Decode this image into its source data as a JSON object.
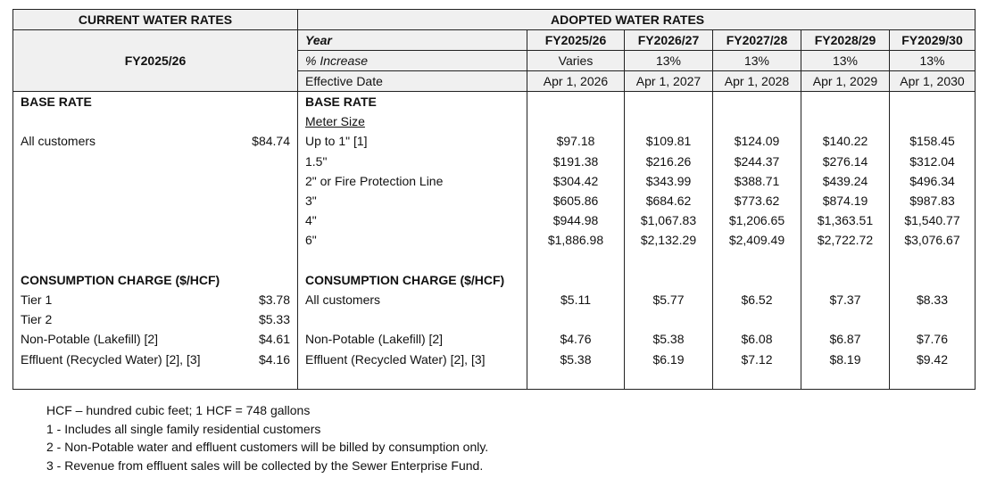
{
  "current": {
    "title": "CURRENT WATER RATES",
    "year": "FY2025/26"
  },
  "adopted": {
    "title": "ADOPTED WATER RATES",
    "row_labels": {
      "year": "Year",
      "increase": "% Increase",
      "effective": "Effective Date"
    },
    "years": [
      {
        "year": "FY2025/26",
        "increase": "Varies",
        "effective": "Apr 1, 2026"
      },
      {
        "year": "FY2026/27",
        "increase": "13%",
        "effective": "Apr 1, 2027"
      },
      {
        "year": "FY2027/28",
        "increase": "13%",
        "effective": "Apr 1, 2028"
      },
      {
        "year": "FY2028/29",
        "increase": "13%",
        "effective": "Apr 1, 2029"
      },
      {
        "year": "FY2029/30",
        "increase": "13%",
        "effective": "Apr 1, 2030"
      }
    ]
  },
  "body_rows": [
    {
      "cur_label": "BASE RATE",
      "cur_bold": true,
      "cur_value": "",
      "adp_label": "BASE RATE",
      "adp_style": "bold",
      "values": []
    },
    {
      "cur_label": "",
      "cur_value": "",
      "adp_label": "Meter Size",
      "adp_style": "underline",
      "values": []
    },
    {
      "cur_label": "All customers",
      "cur_value": "$84.74",
      "adp_label": "Up to 1\" [1]",
      "values": [
        "$97.18",
        "$109.81",
        "$124.09",
        "$140.22",
        "$158.45"
      ]
    },
    {
      "cur_label": "",
      "cur_value": "",
      "adp_label": "1.5\"",
      "values": [
        "$191.38",
        "$216.26",
        "$244.37",
        "$276.14",
        "$312.04"
      ]
    },
    {
      "cur_label": "",
      "cur_value": "",
      "adp_label": "2\" or Fire Protection Line",
      "values": [
        "$304.42",
        "$343.99",
        "$388.71",
        "$439.24",
        "$496.34"
      ]
    },
    {
      "cur_label": "",
      "cur_value": "",
      "adp_label": "3\"",
      "values": [
        "$605.86",
        "$684.62",
        "$773.62",
        "$874.19",
        "$987.83"
      ]
    },
    {
      "cur_label": "",
      "cur_value": "",
      "adp_label": "4\"",
      "values": [
        "$944.98",
        "$1,067.83",
        "$1,206.65",
        "$1,363.51",
        "$1,540.77"
      ]
    },
    {
      "cur_label": "",
      "cur_value": "",
      "adp_label": "6\"",
      "values": [
        "$1,886.98",
        "$2,132.29",
        "$2,409.49",
        "$2,722.72",
        "$3,076.67"
      ]
    },
    {
      "cur_label": "",
      "cur_value": "",
      "adp_label": "",
      "values": []
    },
    {
      "cur_label": "CONSUMPTION CHARGE ($/HCF)",
      "cur_bold": true,
      "cur_value": "",
      "adp_label": "CONSUMPTION CHARGE ($/HCF)",
      "adp_style": "bold",
      "values": []
    },
    {
      "cur_label": "Tier 1",
      "cur_value": "$3.78",
      "adp_label": "All customers",
      "values": [
        "$5.11",
        "$5.77",
        "$6.52",
        "$7.37",
        "$8.33"
      ]
    },
    {
      "cur_label": "Tier 2",
      "cur_value": "$5.33",
      "adp_label": "",
      "values": []
    },
    {
      "cur_label": "Non-Potable (Lakefill) [2]",
      "cur_value": "$4.61",
      "adp_label": "Non-Potable (Lakefill) [2]",
      "values": [
        "$4.76",
        "$5.38",
        "$6.08",
        "$6.87",
        "$7.76"
      ]
    },
    {
      "cur_label": "Effluent (Recycled Water) [2], [3]",
      "cur_value": "$4.16",
      "adp_label": "Effluent (Recycled Water) [2], [3]",
      "values": [
        "$5.38",
        "$6.19",
        "$7.12",
        "$8.19",
        "$9.42"
      ]
    },
    {
      "cur_label": "",
      "cur_value": "",
      "adp_label": "",
      "values": []
    }
  ],
  "footnotes": [
    "HCF – hundred cubic feet; 1 HCF = 748 gallons",
    "1 - Includes all single family residential customers",
    "2 - Non-Potable water and effluent customers will be billed by consumption only.",
    "3 - Revenue from effluent sales will be collected by the Sewer Enterprise Fund."
  ]
}
